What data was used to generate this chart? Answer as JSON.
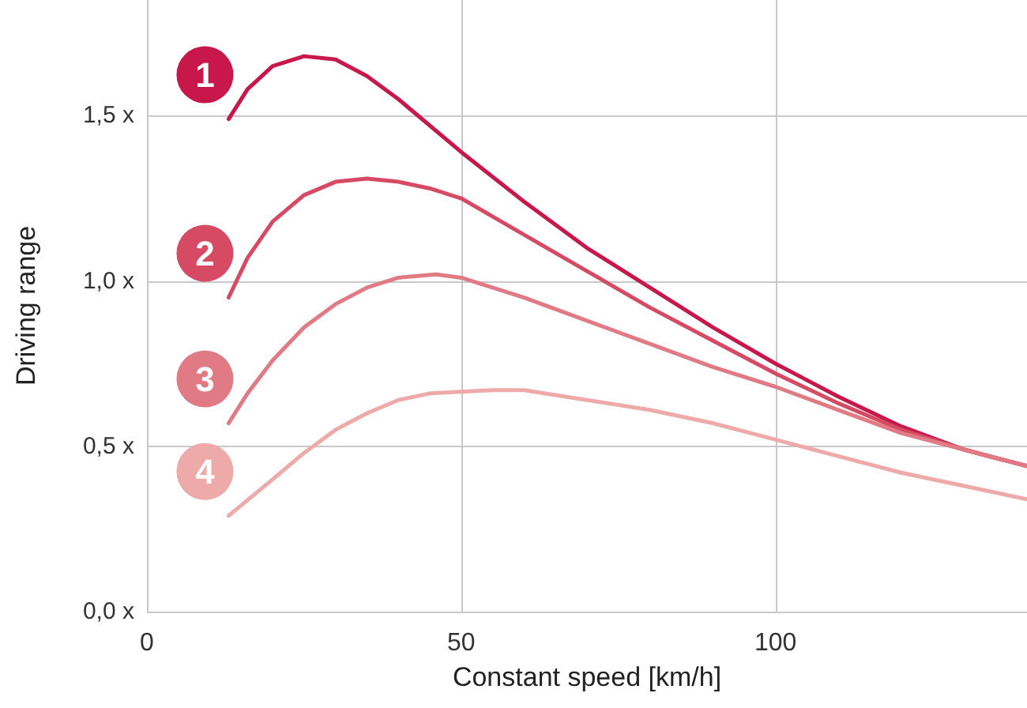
{
  "chart_data": {
    "type": "line",
    "xlabel": "Constant speed [km/h]",
    "ylabel": "Driving range",
    "xlim": [
      0,
      140
    ],
    "xticks": [
      0,
      50,
      100
    ],
    "ylim": [
      0,
      1.85
    ],
    "yticks": [
      {
        "value": 0,
        "label": "0,0 x"
      },
      {
        "value": 0.5,
        "label": "0,5 x"
      },
      {
        "value": 1,
        "label": "1,0 x"
      },
      {
        "value": 1.5,
        "label": "1,5 x"
      }
    ],
    "grid": true,
    "legend": false,
    "marker": "none",
    "line_style": "solid",
    "series": [
      {
        "name": "1",
        "color": "#c8174a",
        "x": [
          13,
          16,
          20,
          25,
          30,
          35,
          40,
          50,
          60,
          70,
          80,
          90,
          100,
          110,
          120,
          130,
          140
        ],
        "values": [
          1.49,
          1.58,
          1.65,
          1.68,
          1.67,
          1.62,
          1.55,
          1.39,
          1.24,
          1.1,
          0.98,
          0.86,
          0.75,
          0.65,
          0.56,
          0.49,
          0.44
        ]
      },
      {
        "name": "2",
        "color": "#d64a63",
        "x": [
          13,
          16,
          20,
          25,
          30,
          35,
          40,
          45,
          50,
          60,
          70,
          80,
          90,
          100,
          110,
          120,
          130,
          140
        ],
        "values": [
          0.95,
          1.07,
          1.18,
          1.26,
          1.3,
          1.31,
          1.3,
          1.28,
          1.25,
          1.14,
          1.03,
          0.92,
          0.82,
          0.72,
          0.63,
          0.55,
          0.49,
          0.44
        ]
      },
      {
        "name": "3",
        "color": "#e07a84",
        "x": [
          13,
          16,
          20,
          25,
          30,
          35,
          40,
          46,
          50,
          60,
          70,
          80,
          90,
          100,
          110,
          120,
          130,
          140
        ],
        "values": [
          0.57,
          0.66,
          0.76,
          0.86,
          0.93,
          0.98,
          1.01,
          1.02,
          1.01,
          0.95,
          0.88,
          0.81,
          0.74,
          0.68,
          0.61,
          0.54,
          0.49,
          0.44
        ]
      },
      {
        "name": "4",
        "color": "#eeaaa8",
        "x": [
          13,
          20,
          25,
          30,
          35,
          40,
          45,
          55,
          60,
          70,
          80,
          90,
          100,
          110,
          120,
          130,
          140
        ],
        "values": [
          0.29,
          0.4,
          0.48,
          0.55,
          0.6,
          0.64,
          0.66,
          0.67,
          0.67,
          0.64,
          0.61,
          0.57,
          0.52,
          0.47,
          0.42,
          0.38,
          0.34
        ]
      }
    ]
  }
}
